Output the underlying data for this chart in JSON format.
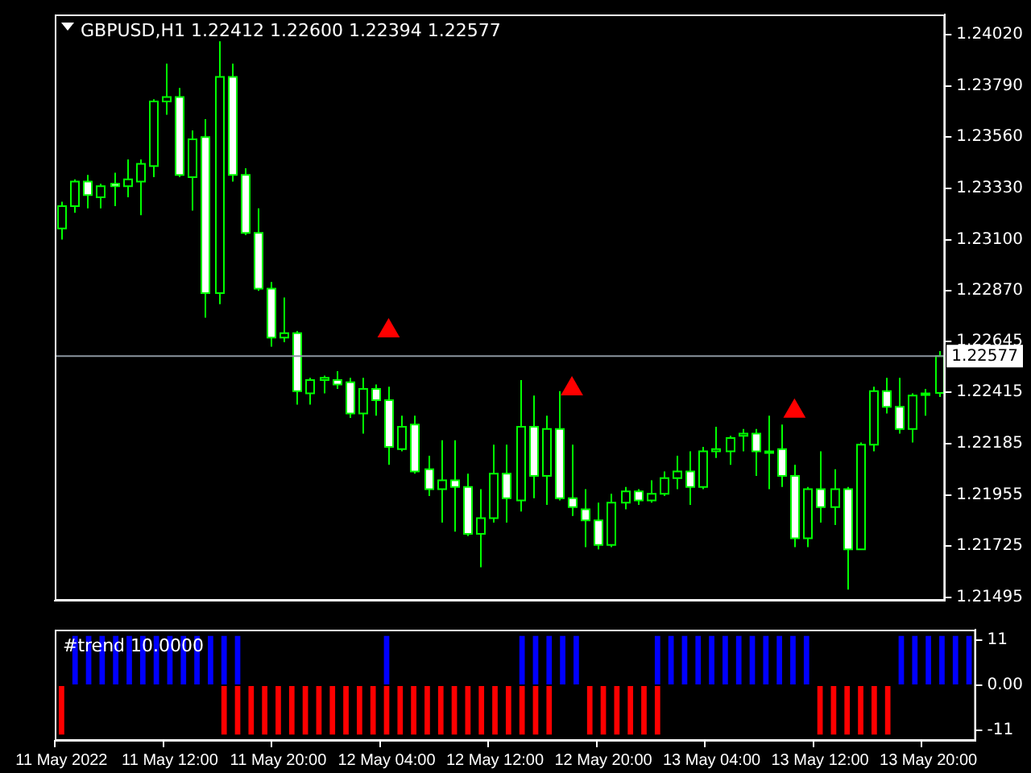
{
  "chart_data": [
    {
      "type": "candlestick",
      "title": "GBPUSD,H1 1.22412 1.22600 1.22394 1.22577",
      "color": "#00ff00",
      "colors": [
        "#00ff00",
        "#00ff00",
        "#ffffff",
        "#00ff00",
        "#ffffff",
        "#00ff00",
        "#00ff00",
        "#00ff00",
        "#00ff00",
        "#ffffff",
        "#00ff00",
        "#ffffff",
        "#00ff00",
        "#ffffff",
        "#ffffff",
        "#ffffff",
        "#ffffff",
        "#00ff00",
        "#ffffff",
        "#00ff00",
        "#00ff00",
        "#ffffff",
        "#ffffff",
        "#00ff00",
        "#ffffff",
        "#ffffff",
        "#00ff00",
        "#ffffff",
        "#ffffff",
        "#00ff00",
        "#ffffff",
        "#ffffff",
        "#00ff00",
        "#00ff00",
        "#ffffff",
        "#00ff00",
        "#ffffff",
        "#00ff00",
        "#ffffff",
        "#ffffff",
        "#ffffff",
        "#ffffff",
        "#00ff00",
        "#00ff00",
        "#ffffff",
        "#00ff00",
        "#00ff00",
        "#00ff00",
        "#ffffff",
        "#00ff00",
        "#00ff00",
        "#00ff00",
        "#00ff00",
        "#ffffff",
        "#00ff00",
        "#ffffff",
        "#ffffff",
        "#00ff00",
        "#ffffff",
        "#00ff00",
        "#ffffff",
        "#00ff00",
        "#00ff00",
        "#ffffff",
        "#ffffff",
        "#00ff00",
        "#00ff00",
        "#00ff00"
      ],
      "categories": [
        null,
        null,
        null,
        null,
        null,
        null,
        null,
        null,
        null,
        null,
        null,
        null,
        null,
        null,
        null,
        null,
        null,
        null,
        null,
        null,
        null,
        null,
        null,
        null,
        null,
        null,
        null,
        null,
        null,
        null,
        null,
        null,
        null,
        null,
        null,
        null,
        null,
        null,
        null,
        null,
        null,
        null,
        null,
        null,
        null,
        null,
        null,
        null,
        null,
        null,
        null,
        null,
        null,
        null,
        null,
        null,
        null,
        null,
        null,
        null,
        null,
        null,
        null,
        null,
        null,
        null,
        null,
        null
      ],
      "ohlc": [
        [
          1.2315,
          1.2327,
          1.231,
          1.2325
        ],
        [
          1.2325,
          1.2337,
          1.2322,
          1.2336
        ],
        [
          1.2336,
          1.2339,
          1.2324,
          1.233
        ],
        [
          1.2329,
          1.2335,
          1.2324,
          1.2334
        ],
        [
          1.2335,
          1.234,
          1.2325,
          1.2334
        ],
        [
          1.2334,
          1.2346,
          1.2329,
          1.2337
        ],
        [
          1.2336,
          1.2346,
          1.2321,
          1.2344
        ],
        [
          1.2343,
          1.2373,
          1.2338,
          1.2372
        ],
        [
          1.2372,
          1.2389,
          1.2366,
          1.2374
        ],
        [
          1.2374,
          1.2378,
          1.2338,
          1.2339
        ],
        [
          1.2338,
          1.2359,
          1.2323,
          1.2355
        ],
        [
          1.2356,
          1.2364,
          1.2275,
          1.2286
        ],
        [
          1.2286,
          1.2399,
          1.2281,
          1.2383
        ],
        [
          1.2383,
          1.2389,
          1.2336,
          1.2339
        ],
        [
          1.2339,
          1.2342,
          1.2312,
          1.2313
        ],
        [
          1.2313,
          1.2324,
          1.2287,
          1.2288
        ],
        [
          1.2288,
          1.2291,
          1.2262,
          1.2266
        ],
        [
          1.2266,
          1.2284,
          1.2264,
          1.2268
        ],
        [
          1.2268,
          1.2269,
          1.2236,
          1.2242
        ],
        [
          1.2241,
          1.2248,
          1.2236,
          1.2247
        ],
        [
          1.2247,
          1.2249,
          1.2241,
          1.2248
        ],
        [
          1.2247,
          1.2251,
          1.2243,
          1.2245
        ],
        [
          1.2246,
          1.2248,
          1.223,
          1.2232
        ],
        [
          1.2232,
          1.2248,
          1.2223,
          1.2243
        ],
        [
          1.2243,
          1.2245,
          1.2231,
          1.2238
        ],
        [
          1.2238,
          1.2244,
          1.2209,
          1.2217
        ],
        [
          1.2216,
          1.2231,
          1.2215,
          1.2226
        ],
        [
          1.2227,
          1.2231,
          1.2205,
          1.2206
        ],
        [
          1.2207,
          1.2213,
          1.2195,
          1.2198
        ],
        [
          1.2198,
          1.222,
          1.2183,
          1.2202
        ],
        [
          1.2202,
          1.222,
          1.2179,
          1.2199
        ],
        [
          1.2199,
          1.2205,
          1.2177,
          1.2178
        ],
        [
          1.2178,
          1.2198,
          1.2163,
          1.2185
        ],
        [
          1.2185,
          1.2218,
          1.2183,
          1.2205
        ],
        [
          1.2205,
          1.2218,
          1.2183,
          1.2194
        ],
        [
          1.2193,
          1.2247,
          1.2188,
          1.2226
        ],
        [
          1.2226,
          1.224,
          1.2194,
          1.2204
        ],
        [
          1.2204,
          1.2231,
          1.2191,
          1.2225
        ],
        [
          1.2225,
          1.2242,
          1.2193,
          1.2194
        ],
        [
          1.2194,
          1.2218,
          1.2186,
          1.219
        ],
        [
          1.2189,
          1.2198,
          1.2172,
          1.2184
        ],
        [
          1.2184,
          1.2192,
          1.2171,
          1.2173
        ],
        [
          1.2173,
          1.2196,
          1.2172,
          1.2192
        ],
        [
          1.2192,
          1.2199,
          1.2189,
          1.2197
        ],
        [
          1.2197,
          1.2198,
          1.2191,
          1.2193
        ],
        [
          1.2193,
          1.2202,
          1.2192,
          1.2196
        ],
        [
          1.2196,
          1.2206,
          1.2195,
          1.2203
        ],
        [
          1.2203,
          1.2213,
          1.2198,
          1.2206
        ],
        [
          1.2206,
          1.2215,
          1.2191,
          1.2199
        ],
        [
          1.2199,
          1.2217,
          1.2198,
          1.2215
        ],
        [
          1.2215,
          1.2226,
          1.2212,
          1.2216
        ],
        [
          1.2215,
          1.2222,
          1.2209,
          1.2221
        ],
        [
          1.2222,
          1.2225,
          1.2215,
          1.2223
        ],
        [
          1.2223,
          1.2225,
          1.2204,
          1.2215
        ],
        [
          1.2215,
          1.2231,
          1.2198,
          1.2215
        ],
        [
          1.2216,
          1.2227,
          1.2199,
          1.2204
        ],
        [
          1.2204,
          1.2209,
          1.2172,
          1.2176
        ],
        [
          1.2176,
          1.2199,
          1.2172,
          1.2198
        ],
        [
          1.2198,
          1.2215,
          1.2183,
          1.219
        ],
        [
          1.219,
          1.2207,
          1.2182,
          1.2198
        ],
        [
          1.2198,
          1.2199,
          1.2153,
          1.2171
        ],
        [
          1.2171,
          1.2219,
          1.2171,
          1.2218
        ],
        [
          1.2218,
          1.2244,
          1.2215,
          1.2242
        ],
        [
          1.2242,
          1.2248,
          1.2232,
          1.2235
        ],
        [
          1.2235,
          1.2248,
          1.2223,
          1.2225
        ],
        [
          1.2225,
          1.2241,
          1.2219,
          1.224
        ],
        [
          1.2241,
          1.2243,
          1.2231,
          1.2241
        ],
        [
          1.22412,
          1.226,
          1.22394,
          1.22577
        ]
      ],
      "series": [
        {
          "type": "scatter",
          "color": "#ff0000",
          "marker": "triangle",
          "values": [
            null,
            null,
            null,
            null,
            null,
            null,
            null,
            null,
            null,
            null,
            null,
            null,
            null,
            null,
            null,
            null,
            null,
            null,
            null,
            null,
            null,
            null,
            null,
            null,
            null,
            1.2269,
            null,
            null,
            null,
            null,
            null,
            null,
            null,
            null,
            null,
            null,
            null,
            null,
            null,
            1.2243,
            null,
            null,
            null,
            null,
            null,
            null,
            null,
            null,
            null,
            null,
            null,
            null,
            null,
            null,
            null,
            null,
            1.2233,
            null,
            null,
            null,
            null,
            null,
            null,
            null,
            null,
            null,
            null,
            null
          ]
        }
      ],
      "ref_lines": [
        {
          "axis": "y",
          "value": 1.22577,
          "label": "1.22577",
          "color": "#8c96a0"
        }
      ],
      "ylim": [
        1.2148,
        1.2411
      ],
      "yticks": [
        {
          "value": 1.2402,
          "label": "1.24020"
        },
        {
          "value": 1.2379,
          "label": "1.23790"
        },
        {
          "value": 1.2356,
          "label": "1.23560"
        },
        {
          "value": 1.2333,
          "label": "1.23330"
        },
        {
          "value": 1.231,
          "label": "1.23100"
        },
        {
          "value": 1.2287,
          "label": "1.22870"
        },
        1.22645,
        1.22415,
        1.22185,
        1.21955,
        1.21725,
        1.21495
      ],
      "tick_labels": "y"
    },
    {
      "type": "bar",
      "title": "#trend 10.0000",
      "stacked": true,
      "categories": [
        "11 May 2022",
        null,
        null,
        null,
        null,
        null,
        null,
        null,
        "11 May 12:00",
        null,
        null,
        null,
        null,
        null,
        null,
        null,
        "11 May 20:00",
        null,
        null,
        null,
        null,
        null,
        null,
        null,
        "12 May 04:00",
        null,
        null,
        null,
        null,
        null,
        null,
        null,
        "12 May 12:00",
        null,
        null,
        null,
        null,
        null,
        null,
        null,
        "12 May 20:00",
        null,
        null,
        null,
        null,
        null,
        null,
        null,
        "13 May 04:00",
        null,
        null,
        null,
        null,
        null,
        null,
        null,
        "13 May 12:00",
        null,
        null,
        null,
        null,
        null,
        null,
        null,
        "13 May 20:00",
        null,
        null,
        null
      ],
      "series": [
        {
          "color": "#0000ff",
          "values": [
            null,
            12,
            12,
            12,
            12,
            12,
            12,
            12,
            12,
            12,
            12,
            12,
            12,
            12,
            null,
            null,
            null,
            null,
            null,
            null,
            null,
            null,
            null,
            null,
            12,
            null,
            null,
            null,
            null,
            null,
            null,
            null,
            null,
            null,
            12,
            12,
            12,
            12,
            12,
            null,
            null,
            null,
            null,
            null,
            12,
            12,
            12,
            12,
            12,
            12,
            12,
            12,
            12,
            12,
            12,
            12,
            null,
            null,
            null,
            null,
            null,
            null,
            12,
            12,
            12,
            12,
            12,
            12
          ]
        },
        {
          "color": "#ff0000",
          "values": [
            -12,
            null,
            null,
            null,
            null,
            null,
            null,
            null,
            null,
            null,
            null,
            null,
            -12,
            -12,
            -12,
            -12,
            -12,
            -12,
            -12,
            -12,
            -12,
            -12,
            -12,
            -12,
            -12,
            -12,
            -12,
            -12,
            -12,
            -12,
            -12,
            -12,
            -12,
            -12,
            -12,
            -12,
            -12,
            null,
            null,
            -12,
            -12,
            -12,
            -12,
            -12,
            -12,
            null,
            null,
            null,
            null,
            null,
            null,
            null,
            null,
            null,
            null,
            null,
            -12,
            -12,
            -12,
            -12,
            -12,
            -12,
            null,
            null,
            null,
            null,
            null,
            null
          ]
        }
      ],
      "ylim": [
        -13.5,
        13.5
      ],
      "yticks": [
        11,
        {
          "value": 0,
          "label": "0.00"
        },
        -11
      ]
    }
  ]
}
